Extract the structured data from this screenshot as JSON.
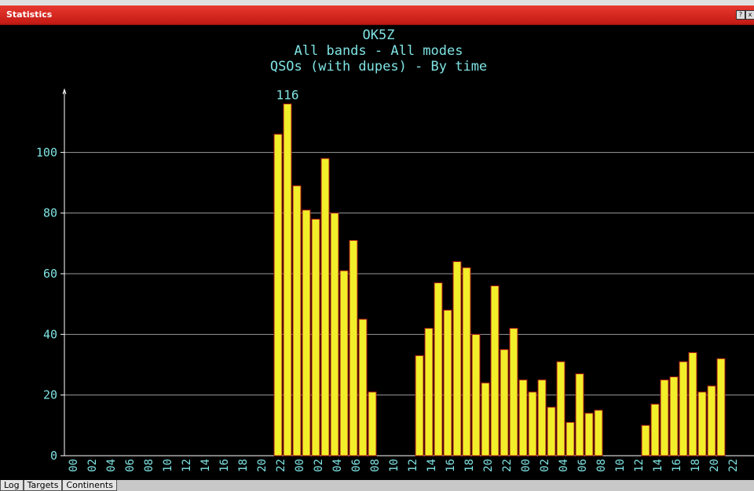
{
  "window": {
    "title": "Statistics"
  },
  "tabs": [
    "Log",
    "Targets",
    "Continents"
  ],
  "chart_data": {
    "type": "bar",
    "title": "OK5Z",
    "subtitles": [
      "All bands - All modes",
      "QSOs (with dupes) - By time"
    ],
    "categories": [
      "00",
      null,
      "02",
      null,
      "04",
      null,
      "06",
      null,
      "08",
      null,
      "10",
      null,
      "12",
      null,
      "14",
      null,
      "16",
      null,
      "18",
      null,
      "20",
      null,
      "22",
      null,
      "00",
      null,
      "02",
      null,
      "04",
      null,
      "06",
      null,
      "08",
      null,
      "10",
      null,
      "12",
      null,
      "14",
      null,
      "16",
      null,
      "18",
      null,
      "20",
      null,
      "22",
      null,
      "00",
      null,
      "02",
      null,
      "04",
      null,
      "06",
      null,
      "08",
      null,
      "10",
      null,
      "12",
      null,
      "14",
      null,
      "16",
      null,
      "18",
      null,
      "20",
      null,
      "22",
      null
    ],
    "values": [
      0,
      0,
      0,
      0,
      0,
      0,
      0,
      0,
      0,
      0,
      0,
      0,
      0,
      0,
      0,
      0,
      0,
      0,
      0,
      0,
      0,
      0,
      106,
      116,
      89,
      81,
      78,
      98,
      80,
      61,
      71,
      45,
      21,
      0,
      0,
      0,
      0,
      33,
      42,
      57,
      48,
      64,
      62,
      40,
      24,
      56,
      35,
      42,
      25,
      21,
      25,
      16,
      31,
      11,
      27,
      14,
      15,
      0,
      0,
      0,
      0,
      10,
      17,
      25,
      26,
      31,
      34,
      21,
      23,
      32,
      0,
      0
    ],
    "color": "#f2ee2a",
    "edge_color": "#b01818",
    "ylim": [
      0,
      120
    ],
    "yticks": [
      0,
      20,
      40,
      60,
      80,
      100
    ],
    "grid": true
  }
}
